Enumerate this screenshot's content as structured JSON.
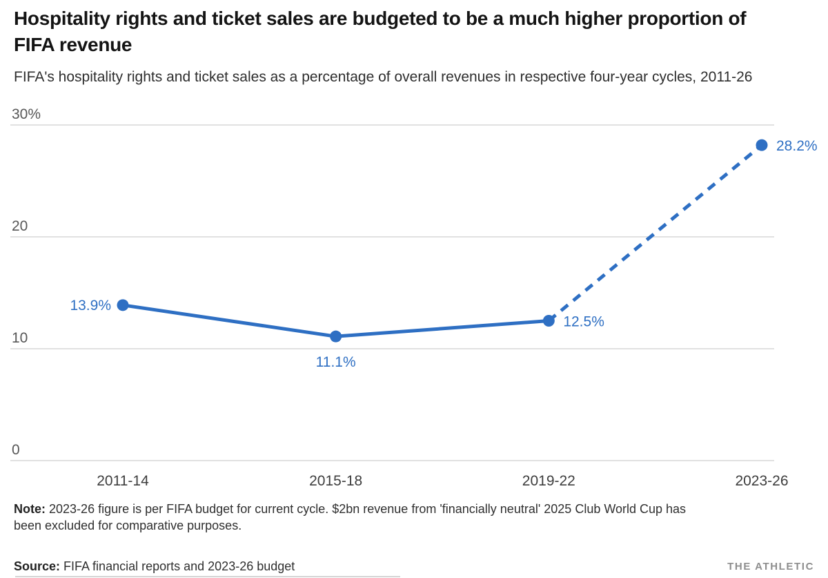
{
  "header": {
    "title": "Hospitality rights and ticket sales are budgeted to be a much higher proportion of FIFA revenue",
    "subtitle": "FIFA's hospitality rights and ticket sales as a percentage of overall revenues in respective four-year cycles, 2011-26"
  },
  "chart_data": {
    "type": "line",
    "categories": [
      "2011-14",
      "2015-18",
      "2019-22",
      "2023-26"
    ],
    "values": [
      13.9,
      11.1,
      12.5,
      28.2
    ],
    "point_labels": [
      "13.9%",
      "11.1%",
      "12.5%",
      "28.2%"
    ],
    "label_positions": [
      "left",
      "below",
      "right",
      "right"
    ],
    "dashed_from_index": 2,
    "title": "Hospitality rights and ticket sales are budgeted to be a much higher proportion of FIFA revenue",
    "xlabel": "",
    "ylabel": "",
    "ylim": [
      0,
      30
    ],
    "yticks": [
      {
        "value": 0,
        "label": "0"
      },
      {
        "value": 10,
        "label": "10"
      },
      {
        "value": 20,
        "label": "20"
      },
      {
        "value": 30,
        "label": "30%"
      }
    ],
    "grid": "horizontal-only",
    "legend": "none",
    "colors": {
      "line": "#2e6fc3",
      "grid": "#d7d7d7",
      "tick_text": "#575757",
      "category_text": "#3d3d3d",
      "point_label_text": "#2e6fc3"
    }
  },
  "footer": {
    "note_label": "Note:",
    "note_text": "2023-26 figure is per FIFA budget for current cycle. $2bn revenue from 'financially neutral' 2025 Club World Cup has been excluded for comparative purposes.",
    "source_label": "Source:",
    "source_text": "FIFA financial reports and 2023-26 budget",
    "brand": "THE ATHLETIC"
  }
}
